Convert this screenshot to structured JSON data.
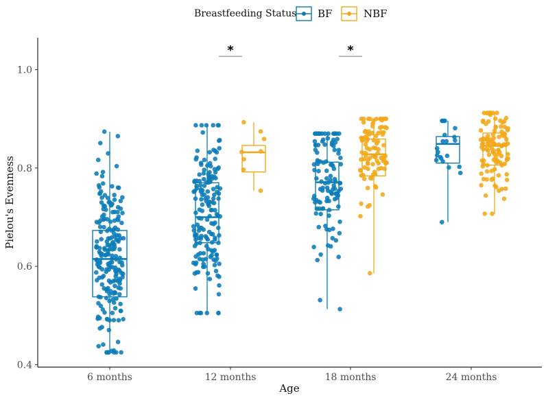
{
  "chart_data": {
    "type": "boxplot",
    "title": "",
    "xlabel": "Age",
    "ylabel": "Pielou's Evenness",
    "ylim": [
      0.395,
      1.065
    ],
    "yticks": [
      0.4,
      0.6,
      0.8,
      1.0
    ],
    "ytick_labels": [
      "0.4",
      "0.6",
      "0.8",
      "1.0"
    ],
    "categories": [
      "6 months",
      "12 months",
      "18 months",
      "24 months"
    ],
    "legend": {
      "title": "Breastfeeding Status",
      "position": "top",
      "entries": [
        {
          "name": "BF",
          "color": "#0a7cb8"
        },
        {
          "name": "NBF",
          "color": "#f2a819"
        }
      ]
    },
    "series": [
      {
        "name": "BF",
        "color": "#0a7cb8",
        "boxes": [
          {
            "category": "6 months",
            "q1": 0.538,
            "median": 0.615,
            "q3": 0.673,
            "whisker_low": 0.425,
            "whisker_high": 0.874,
            "n_points": 210,
            "spread": [
              0.425,
              0.874
            ]
          },
          {
            "category": "12 months",
            "q1": 0.648,
            "median": 0.7,
            "q3": 0.77,
            "whisker_low": 0.505,
            "whisker_high": 0.887,
            "n_points": 170,
            "spread": [
              0.505,
              0.887
            ]
          },
          {
            "category": "18 months",
            "q1": 0.715,
            "median": 0.771,
            "q3": 0.812,
            "whisker_low": 0.513,
            "whisker_high": 0.87,
            "n_points": 115,
            "spread": [
              0.513,
              0.87
            ]
          },
          {
            "category": "24 months",
            "q1": 0.81,
            "median": 0.849,
            "q3": 0.864,
            "whisker_low": 0.69,
            "whisker_high": 0.896,
            "n_points": 22,
            "spread": [
              0.69,
              0.896
            ]
          }
        ]
      },
      {
        "name": "NBF",
        "color": "#f2a819",
        "boxes": [
          {
            "category": "6 months",
            "q1": null,
            "median": null,
            "q3": null,
            "whisker_low": null,
            "whisker_high": null,
            "n_points": 0,
            "spread": null
          },
          {
            "category": "12 months",
            "q1": 0.792,
            "median": 0.832,
            "q3": 0.846,
            "whisker_low": 0.754,
            "whisker_high": 0.893,
            "n_points": 8,
            "spread": [
              0.754,
              0.893
            ]
          },
          {
            "category": "18 months",
            "q1": 0.784,
            "median": 0.828,
            "q3": 0.859,
            "whisker_low": 0.586,
            "whisker_high": 0.9,
            "n_points": 95,
            "spread": [
              0.586,
              0.9
            ]
          },
          {
            "category": "24 months",
            "q1": 0.806,
            "median": 0.845,
            "q3": 0.871,
            "whisker_low": 0.707,
            "whisker_high": 0.912,
            "n_points": 110,
            "spread": [
              0.707,
              0.912
            ]
          }
        ]
      }
    ],
    "annotations": [
      {
        "category": "12 months",
        "text": "*",
        "y": 1.027
      },
      {
        "category": "18 months",
        "text": "*",
        "y": 1.027
      }
    ],
    "grid": false
  }
}
